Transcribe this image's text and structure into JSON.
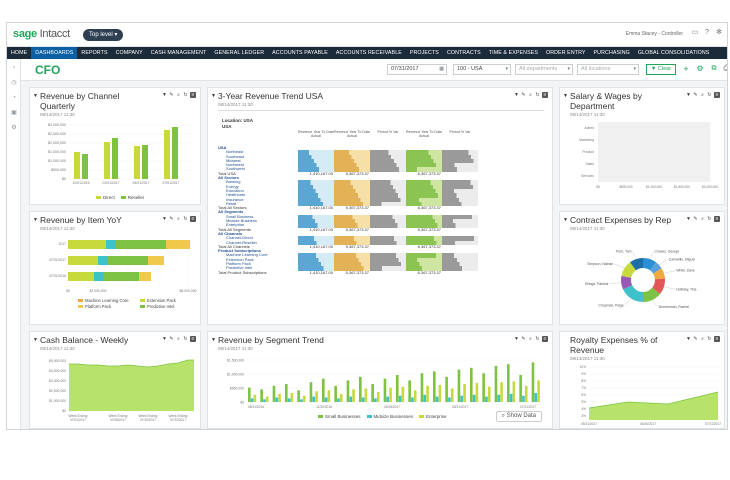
{
  "brand": {
    "logo_main": "sage",
    "logo_sub": " Intacct",
    "level": "Top level",
    "user": "Emma Stacey - Controller"
  },
  "nav": [
    "HOME",
    "DASHBOARDS",
    "REPORTS",
    "COMPANY",
    "CASH MANAGEMENT",
    "GENERAL LEDGER",
    "ACCOUNTS PAYABLE",
    "ACCOUNTS RECEIVABLE",
    "PROJECTS",
    "CONTRACTS",
    "TIME & EXPENSES",
    "ORDER ENTRY",
    "PURCHASING",
    "GLOBAL CONSOLIDATIONS"
  ],
  "nav_active": 1,
  "toolbar": {
    "title": "CFO",
    "date": "07/31/2017",
    "entity": "100 - USA",
    "department": "All departments",
    "location": "All locations",
    "filter": "Clear"
  },
  "panels": {
    "revenue_channel": {
      "title_1": "Revenue by Channel",
      "title_2": "Quarterly",
      "date": "08/14/2017 11:30",
      "legend": [
        "Direct",
        "Reseller"
      ]
    },
    "revenue_item": {
      "title": "Revenue by Item YoY",
      "date": "08/14/2017 11:30",
      "legend": [
        "Machine Learning Core",
        "Extension Pack",
        "Platform Pack",
        "Predictive Intel"
      ]
    },
    "cash_balance": {
      "title": "Cash Balance - Weekly",
      "date": "08/14/2017 11:30"
    },
    "trend_usa": {
      "title": "3-Year Revenue Trend USA",
      "date": "08/14/2017 11:30",
      "location_label": "Location: USA",
      "location_sub": "USA"
    },
    "segment_trend": {
      "title": "Revenue by Segment Trend",
      "date": "08/14/2017 11:30",
      "legend": [
        "Small Businesses",
        "Midsize Businesses",
        "Enterprise"
      ],
      "show_data": "Show Data"
    },
    "salary": {
      "title_1": "Salary & Wages by",
      "title_2": "Department",
      "date": "08/14/2017 11:30",
      "departments": [
        "Admin",
        "Marketing",
        "Product",
        "Sales",
        "Services"
      ]
    },
    "contract_rep": {
      "title": "Contract Expenses by Rep",
      "date": "08/14/2017 11:30",
      "reps": [
        "Chavez, George",
        "Camarillo, Miguel",
        "White, Dave",
        "Holliday, Tina",
        "Zimmerman, Rachel",
        "Chapman, Paige",
        "Ellings, Patricia",
        "Simpson, Nathan",
        "Trent, Tom"
      ]
    },
    "royalty": {
      "title_1": "Royalty Expenses % of",
      "title_2": "Revenue",
      "date": "08/14/2017 11:30"
    }
  },
  "table": {
    "headers": [
      "Revenue Year To Date Actual",
      "Revenue Year To Date Actual",
      "Period % Var",
      "Revenue Year To Date Actual",
      "Period % Var"
    ],
    "sections": [
      {
        "name": "USA",
        "rows": [
          "Northeast",
          "Southeast",
          "Midwest",
          "Northwest",
          "Southwest"
        ],
        "total": "Total USA"
      },
      {
        "name": "All Sectors",
        "rows": [
          "Banking",
          "Energy",
          "Education",
          "Healthcare",
          "Insurance",
          "Retail"
        ],
        "total": "Total All Sectors"
      },
      {
        "name": "All Segments",
        "rows": [
          "Small Business",
          "Midsize Business",
          "Enterprise"
        ],
        "total": "Total All Segments"
      },
      {
        "name": "All Channels",
        "rows": [
          "Channel-Direct",
          "Channel-Reseller"
        ],
        "total": "Total All Channels"
      },
      {
        "name": "Product Subscriptions",
        "rows": [
          "Machine Learning Core",
          "Extension Pack",
          "Platform Pack",
          "Predictive Intel"
        ],
        "total": "Total Product Subscriptions"
      }
    ],
    "total_values": [
      "1,410,167.00",
      "5,367,373.37",
      "",
      "6,367,373.37",
      ""
    ]
  },
  "colors": {
    "green": "#7dc242",
    "lime": "#c8d93b",
    "blue": "#2a8fd4",
    "teal": "#3fc1c9",
    "orange": "#f0a93c",
    "navy": "#1c2b39",
    "brand_green": "#1fa55b"
  }
}
